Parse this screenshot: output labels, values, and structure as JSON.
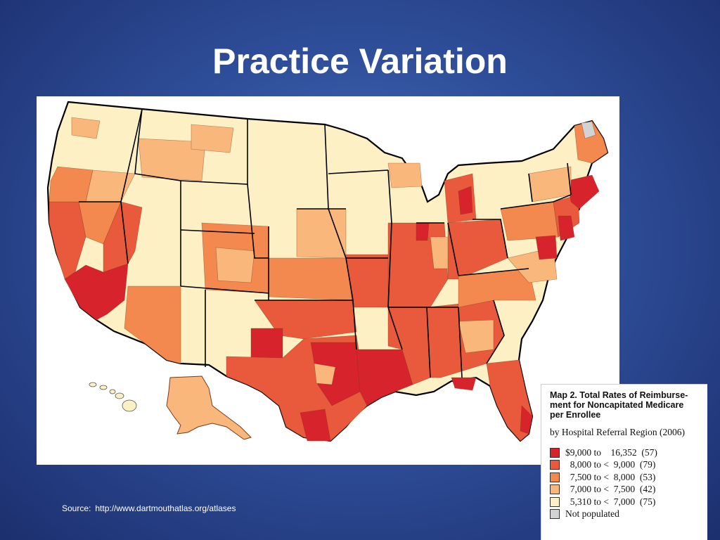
{
  "slide": {
    "title": "Practice Variation",
    "source_label": "Source:",
    "source_url": "http://www.dartmouthatlas.org/atlases"
  },
  "map": {
    "type": "choropleth",
    "region": "United States",
    "unit": "Hospital Referral Region",
    "colors": {
      "tier1": "#d7232b",
      "tier2": "#e9593b",
      "tier3": "#f3894e",
      "tier4": "#f9b77c",
      "tier5": "#fdf0c4",
      "not_populated": "#d3d3d3",
      "border": "#000000"
    }
  },
  "legend": {
    "title": "Map 2. Total Rates of Reimburse-\nment for Noncapitated Medicare\nper Enrollee",
    "subtitle": "by Hospital Referral Region (2006)",
    "items": [
      {
        "range": "$9,000 to    16,352",
        "count": "(57)",
        "color": "#d7232b"
      },
      {
        "range": "  8,000 to <  9,000",
        "count": "(79)",
        "color": "#e9593b"
      },
      {
        "range": "  7,500 to <  8,000",
        "count": "(53)",
        "color": "#f3894e"
      },
      {
        "range": "  7,000 to <  7,500",
        "count": "(42)",
        "color": "#f9b77c"
      },
      {
        "range": "  5,310 to <  7,000",
        "count": "(75)",
        "color": "#fdf0c4"
      },
      {
        "range": "Not populated",
        "count": "",
        "color": "#d3d3d3"
      }
    ]
  }
}
